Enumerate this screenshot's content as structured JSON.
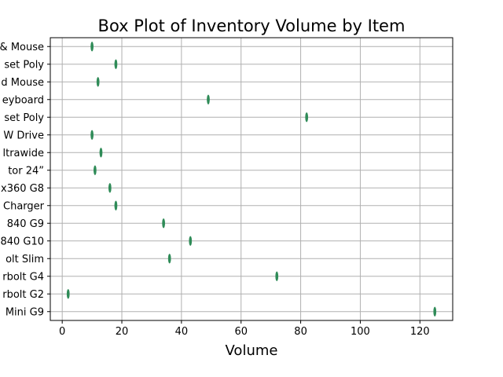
{
  "chart_data": {
    "type": "boxplot",
    "orientation": "horizontal",
    "title": "Box Plot of Inventory Volume by Item",
    "xlabel": "Volume",
    "ylabel": "",
    "xlim": [
      -4,
      131
    ],
    "xticks": [
      0,
      20,
      40,
      60,
      80,
      100,
      120
    ],
    "grid": true,
    "box_color": "#2e8b57",
    "grid_color": "#b0b0b0",
    "categories": [
      "& Mouse",
      "set Poly",
      "d Mouse",
      "eyboard",
      "set Poly",
      "W Drive",
      "ltrawide",
      "tor 24”",
      "x360 G8",
      "Charger",
      "840 G9",
      "840 G10",
      "olt Slim",
      "rbolt G4",
      "rbolt G2",
      "Mini G9"
    ],
    "values": [
      10,
      18,
      12,
      49,
      82,
      10,
      13,
      11,
      16,
      18,
      34,
      43,
      36,
      72,
      2,
      125
    ]
  }
}
